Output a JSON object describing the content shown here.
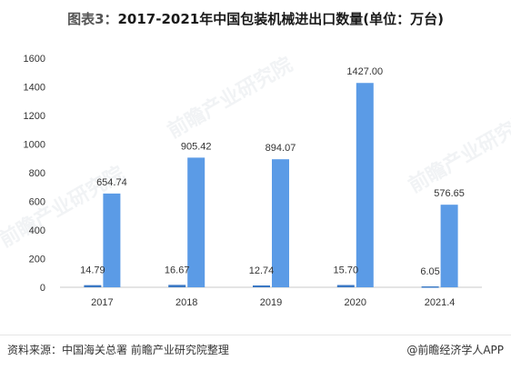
{
  "title": {
    "prefix": "图表3：",
    "text": "2017-2021年中国包装机械进出口数量(单位：万台)"
  },
  "source": "资料来源：中国海关总署 前瞻产业研究院整理",
  "credit": "@前瞻经济学人APP",
  "watermark": "前瞻产业研究院",
  "colors": {
    "import": "#3a78c4",
    "export": "#5b9be6",
    "axis": "#c8c8c8"
  },
  "chart_data": {
    "type": "bar",
    "categories": [
      "2017",
      "2018",
      "2019",
      "2020",
      "2021.4"
    ],
    "series": [
      {
        "values": [
          14.79,
          16.67,
          12.74,
          15.7,
          6.05
        ]
      },
      {
        "values": [
          654.74,
          905.42,
          894.07,
          1427.0,
          576.65
        ]
      }
    ],
    "value_labels": [
      [
        "14.79",
        "16.67",
        "12.74",
        "15.70",
        "6.05"
      ],
      [
        "654.74",
        "905.42",
        "894.07",
        "1427.00",
        "576.65"
      ]
    ],
    "yticks": [
      "0",
      "200",
      "400",
      "600",
      "800",
      "1000",
      "1200",
      "1400",
      "1600"
    ],
    "ylim": [
      0,
      1600
    ],
    "grid": false,
    "legend": "none"
  }
}
